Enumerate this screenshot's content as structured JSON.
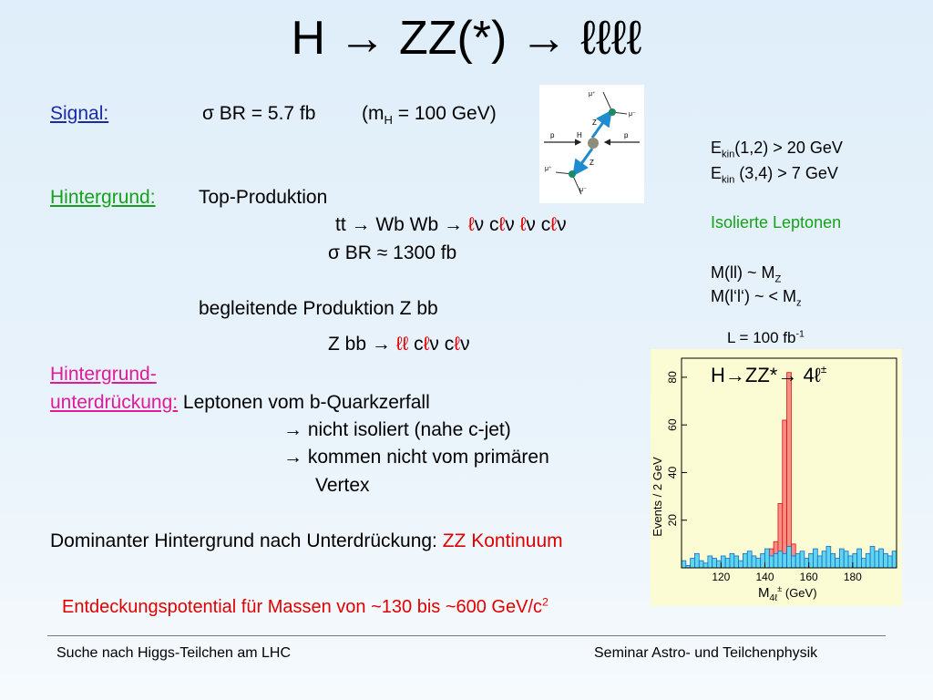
{
  "slide": {
    "title": "H → ZZ(*) → ℓℓℓℓ",
    "signal": {
      "label": "Signal:",
      "sigma": "σ",
      "br_text": " BR = 5.7 fb",
      "mass_open": "(m",
      "mass_sub": "H",
      "mass_close": " = 100 GeV)"
    },
    "background": {
      "label": "Hintergrund:",
      "top": "Top-Produktion",
      "tt_prefix": "tt → Wb Wb → ",
      "l": "ℓ",
      "nu": "ν",
      "c": " c",
      "sigma": "σ",
      "br_text": " BR ≈ 1300 fb",
      "assoc": "begleitende Produktion  Z bb",
      "zbb_prefix": "Z bb → ",
      "ll": "ℓℓ"
    },
    "suppression": {
      "label1": "Hintergrund-",
      "label2": "unterdrückung:",
      "line1": " Leptonen vom b-Quarkzerfall",
      "line2": "→ nicht isoliert (nahe c-jet)",
      "line3": "→ kommen nicht vom primären",
      "line4": "Vertex"
    },
    "dominant": {
      "text": "Dominanter Hintergrund nach Unterdrückung: ",
      "highlight": "ZZ Kontinuum"
    },
    "discovery": {
      "text": "Entdeckungspotential für Massen von  ~130  bis ~600 GeV/c",
      "sup": "2"
    },
    "cuts": {
      "e": "E",
      "kin": "kin",
      "cut1": "(1,2) > 20  GeV",
      "cut2": " (3,4) >  7  GeV",
      "iso": "Isolierte Leptonen",
      "m1a": "M(ll)  ~     M",
      "m1sub": "Z",
      "m2a": "M(l‘l‘) ~ < M",
      "m2sub": "z",
      "lumi_a": "L = 100 fb",
      "lumi_sup": "-1"
    },
    "footer": {
      "left": "Suche nach Higgs-Teilchen am LHC",
      "right": "Seminar Astro- und Teilchenphysik"
    },
    "diagram": {
      "mu_plus_top": "μ⁺",
      "mu_minus_top": "μ⁻",
      "z_top": "Z",
      "p_left": "p",
      "h": "H",
      "p_right": "p",
      "z_bottom": "Z",
      "mu_plus_bottom": "μ⁺",
      "mu_minus_bottom": "μ⁻"
    }
  },
  "chart_data": {
    "type": "bar",
    "title": "H→ZZ*→ 4ℓ",
    "title_sup": "±",
    "xlabel": "M",
    "xlabel_sub": "4ℓ",
    "xlabel_sup": "±",
    "xlabel_unit": " (GeV)",
    "ylabel": "Events / 2 GeV",
    "xlim": [
      102,
      200
    ],
    "ylim": [
      0,
      88
    ],
    "xticks": [
      120,
      140,
      160,
      180
    ],
    "yticks": [
      20,
      40,
      60,
      80
    ],
    "bin_width": 2,
    "series": [
      {
        "name": "",
        "color": "#5fd6ee",
        "bin_starts": [
          102,
          104,
          106,
          108,
          110,
          112,
          114,
          116,
          118,
          120,
          122,
          124,
          126,
          128,
          130,
          132,
          134,
          136,
          138,
          140,
          142,
          144,
          146,
          148,
          150,
          152,
          154,
          156,
          158,
          160,
          162,
          164,
          166,
          168,
          170,
          172,
          174,
          176,
          178,
          180,
          182,
          184,
          186,
          188,
          190,
          192,
          194,
          196,
          198
        ],
        "values": [
          3,
          1,
          4,
          6,
          3,
          2,
          5,
          4,
          3,
          5,
          4,
          6,
          5,
          3,
          6,
          7,
          5,
          4,
          6,
          8,
          5,
          6,
          7,
          6,
          9,
          5,
          6,
          7,
          4,
          6,
          8,
          5,
          7,
          9,
          6,
          4,
          8,
          7,
          5,
          6,
          8,
          4,
          6,
          9,
          7,
          8,
          6,
          5,
          7
        ]
      },
      {
        "name": "",
        "color": "#f78f85",
        "bin_starts": [
          142,
          144,
          146,
          148,
          150,
          152
        ],
        "values": [
          8,
          11,
          27,
          62,
          82,
          10
        ]
      }
    ]
  }
}
